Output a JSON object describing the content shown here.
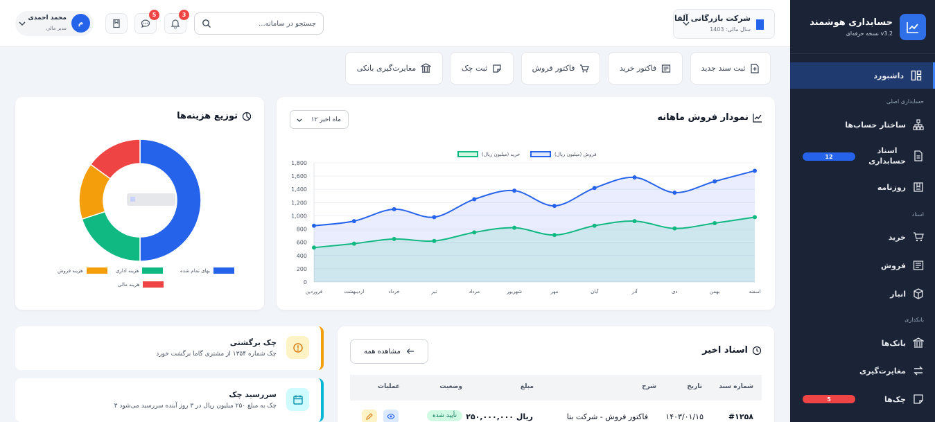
{
  "sidebar": {
    "app_title": "حسابداری هوشمند",
    "app_version": "نسخه حرفه‌ای v3.2",
    "logo_icon": "chart-line-icon",
    "items": [
      {
        "label": "داشبورد",
        "icon": "dashboard-icon"
      },
      {
        "label": "ساختار حساب‌ها",
        "icon": "hierarchy-icon"
      },
      {
        "label": "اسناد\nحسابداری",
        "icon": "document-icon",
        "badge": "12"
      },
      {
        "label": "روزنامه",
        "icon": "journal-icon"
      },
      {
        "label": "خرید",
        "icon": "cart-icon"
      },
      {
        "label": "فروش",
        "icon": "invoice-icon"
      },
      {
        "label": "انبار",
        "icon": "box-icon"
      },
      {
        "label": "بانک‌ها",
        "icon": "bank-icon"
      },
      {
        "label": "مغایرت‌گیری",
        "icon": "swap-icon"
      },
      {
        "label": "چک‌ها",
        "icon": "check-icon",
        "badge": "5"
      }
    ],
    "sections": {
      "main": "حسابداری اصلی",
      "docs": "اسناد",
      "banking": "بانکداری"
    },
    "badge_colors": {
      "docs": "#2563eb",
      "checks": "#ef4444"
    }
  },
  "header": {
    "company_name": "شرکت بازرگانی آلفا",
    "fiscal_year": "سال مالی: 1403",
    "search_placeholder": "جستجو در سامانه...",
    "notifications_count": "3",
    "messages_count": "5",
    "user_name": "محمد احمدی",
    "user_role": "مدیر مالی",
    "user_initial": "م"
  },
  "quick_actions": [
    {
      "label": "ثبت سند جدید",
      "icon": "plus-square-icon"
    },
    {
      "label": "فاکتور خرید",
      "icon": "receipt-icon"
    },
    {
      "label": "فاکتور فروش",
      "icon": "cart-icon"
    },
    {
      "label": "ثبت چک",
      "icon": "check-note-icon"
    },
    {
      "label": "مغایرت‌گیری بانکی",
      "icon": "bank-icon"
    }
  ],
  "sales_chart": {
    "title": "نمودار فروش ماهانه",
    "period": "۱۲ ماه اخیر"
  },
  "expense_chart": {
    "title": "توزیع هزینه‌ها"
  },
  "chart_data": [
    {
      "type": "line",
      "title": "نمودار فروش ماهانه",
      "categories": [
        "فروردین",
        "اردیبهشت",
        "خرداد",
        "تیر",
        "مرداد",
        "شهریور",
        "مهر",
        "آبان",
        "آذر",
        "دی",
        "بهمن",
        "اسفند"
      ],
      "series": [
        {
          "name": "فروش (میلیون ریال)",
          "color": "#2563eb",
          "values": [
            850,
            920,
            1100,
            980,
            1250,
            1380,
            1150,
            1420,
            1580,
            1350,
            1520,
            1680
          ]
        },
        {
          "name": "خرید (میلیون ریال)",
          "color": "#10b981",
          "values": [
            520,
            580,
            650,
            620,
            750,
            820,
            710,
            850,
            920,
            810,
            890,
            980
          ]
        }
      ],
      "ylim": [
        0,
        1800
      ],
      "yticks": [
        "0",
        "200",
        "400",
        "600",
        "800",
        "1,000",
        "1,200",
        "1,400",
        "1,600",
        "1,800"
      ],
      "legend": "top",
      "grid": true
    },
    {
      "type": "pie",
      "title": "توزیع هزینه‌ها",
      "labels": [
        "بهای تمام شده",
        "هزینه اداری",
        "هزینه فروش",
        "هزینه مالی"
      ],
      "values": [
        50,
        20,
        15,
        15
      ],
      "colors": [
        "#2563eb",
        "#10b981",
        "#f59e0b",
        "#ef4444"
      ],
      "legend": "bottom"
    }
  ],
  "alerts": [
    {
      "title": "چک برگشتی",
      "text": "چک شماره ۱۳۵۴ از مشتری گاما برگشت خورد",
      "color": "#f59e0b",
      "icon": "alert-circle-icon"
    },
    {
      "title": "سررسید چک",
      "text": "۳ چک به مبلغ ۲۵۰ میلیون ریال در ۳ روز آینده سررسید می‌شود",
      "color": "#06b6d4",
      "icon": "calendar-icon"
    }
  ],
  "recent_docs": {
    "title": "اسناد اخیر",
    "view_all": "مشاهده همه",
    "columns": [
      "شماره سند",
      "تاریخ",
      "شرح",
      "مبلغ",
      "وضعیت",
      "عملیات"
    ],
    "rows": [
      {
        "number": "#۱۲۵۸",
        "date": "۱۴۰۳/۰۱/۱۵",
        "desc": "فاکتور فروش - شرکت بتا",
        "amount": "۲۵۰,۰۰۰,۰۰۰ ریال",
        "status": "تأیید شده"
      }
    ]
  }
}
